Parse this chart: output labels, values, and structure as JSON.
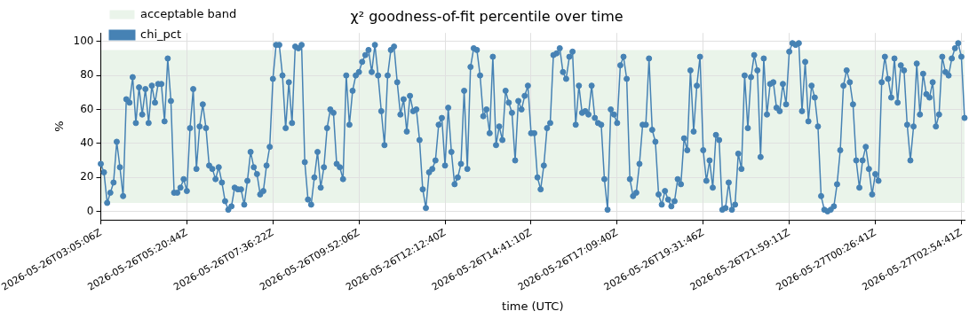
{
  "chart_data": {
    "type": "line",
    "title": "χ² goodness-of-fit percentile over time",
    "xlabel": "time (UTC)",
    "ylabel": "%",
    "categories": [
      "2026-05-26T03:05:06Z",
      null,
      null,
      null,
      null,
      null,
      null,
      null,
      null,
      null,
      null,
      null,
      null,
      null,
      null,
      null,
      null,
      null,
      null,
      null,
      null,
      null,
      null,
      null,
      null,
      null,
      null,
      "2026-05-26T05:20:44Z",
      null,
      null,
      null,
      null,
      null,
      null,
      null,
      null,
      null,
      null,
      null,
      null,
      null,
      null,
      null,
      null,
      null,
      null,
      null,
      null,
      null,
      null,
      null,
      null,
      null,
      null,
      "2026-05-26T07:36:22Z",
      null,
      null,
      null,
      null,
      null,
      null,
      null,
      null,
      null,
      null,
      null,
      null,
      null,
      null,
      null,
      null,
      null,
      null,
      null,
      null,
      null,
      null,
      null,
      null,
      null,
      null,
      "2026-05-26T09:52:06Z",
      null,
      null,
      null,
      null,
      null,
      null,
      null,
      null,
      null,
      null,
      null,
      null,
      null,
      null,
      null,
      null,
      null,
      null,
      null,
      null,
      null,
      null,
      null,
      null,
      null,
      null,
      "2026-05-26T12:12:40Z",
      null,
      null,
      null,
      null,
      null,
      null,
      null,
      null,
      null,
      null,
      null,
      null,
      null,
      null,
      null,
      null,
      null,
      null,
      null,
      null,
      null,
      null,
      null,
      null,
      null,
      null,
      "2026-05-26T14:41:10Z",
      null,
      null,
      null,
      null,
      null,
      null,
      null,
      null,
      null,
      null,
      null,
      null,
      null,
      null,
      null,
      null,
      null,
      null,
      null,
      null,
      null,
      null,
      null,
      null,
      null,
      null,
      "2026-05-26T17:09:40Z",
      null,
      null,
      null,
      null,
      null,
      null,
      null,
      null,
      null,
      null,
      null,
      null,
      null,
      null,
      null,
      null,
      null,
      null,
      null,
      null,
      null,
      null,
      null,
      null,
      null,
      null,
      "2026-05-26T19:31:46Z",
      null,
      null,
      null,
      null,
      null,
      null,
      null,
      null,
      null,
      null,
      null,
      null,
      null,
      null,
      null,
      null,
      null,
      null,
      null,
      null,
      null,
      null,
      null,
      null,
      null,
      null,
      "2026-05-26T21:59:11Z",
      null,
      null,
      null,
      null,
      null,
      null,
      null,
      null,
      null,
      null,
      null,
      null,
      null,
      null,
      null,
      null,
      null,
      null,
      null,
      null,
      null,
      null,
      null,
      null,
      null,
      null,
      "2026-05-27T00:26:41Z",
      null,
      null,
      null,
      null,
      null,
      null,
      null,
      null,
      null,
      null,
      null,
      null,
      null,
      null,
      null,
      null,
      null,
      null,
      null,
      null,
      null,
      null,
      null,
      null,
      null,
      null,
      "2026-05-27T02:54:41Z",
      null
    ],
    "series": [
      {
        "name": "chi_pct",
        "color": "#4682b4",
        "values": [
          28,
          23,
          5,
          11,
          17,
          41,
          26,
          9,
          66,
          64,
          79,
          52,
          73,
          57,
          72,
          52,
          74,
          64,
          75,
          75,
          53,
          90,
          65,
          11,
          11,
          14,
          19,
          12,
          49,
          72,
          25,
          50,
          63,
          49,
          27,
          25,
          19,
          26,
          17,
          6,
          1,
          3,
          14,
          13,
          13,
          4,
          18,
          35,
          26,
          22,
          10,
          12,
          27,
          38,
          78,
          98,
          98,
          80,
          49,
          76,
          52,
          97,
          96,
          98,
          29,
          7,
          4,
          20,
          35,
          14,
          26,
          49,
          60,
          58,
          28,
          26,
          19,
          80,
          51,
          71,
          80,
          82,
          88,
          92,
          95,
          82,
          98,
          80,
          59,
          39,
          80,
          95,
          97,
          76,
          57,
          66,
          47,
          68,
          59,
          60,
          42,
          13,
          2,
          23,
          25,
          30,
          51,
          55,
          27,
          61,
          35,
          16,
          20,
          28,
          71,
          25,
          85,
          96,
          95,
          80,
          56,
          60,
          46,
          91,
          39,
          50,
          42,
          71,
          64,
          58,
          30,
          65,
          60,
          68,
          74,
          46,
          46,
          20,
          13,
          27,
          49,
          52,
          92,
          93,
          96,
          82,
          78,
          91,
          94,
          51,
          74,
          58,
          59,
          57,
          74,
          55,
          52,
          51,
          19,
          1,
          60,
          57,
          52,
          86,
          91,
          78,
          19,
          9,
          11,
          28,
          51,
          51,
          90,
          48,
          41,
          10,
          4,
          12,
          7,
          3,
          6,
          19,
          16,
          43,
          36,
          83,
          47,
          74,
          91,
          36,
          18,
          30,
          14,
          45,
          42,
          1,
          2,
          17,
          1,
          4,
          34,
          25,
          80,
          49,
          79,
          92,
          83,
          32,
          90,
          57,
          75,
          76,
          61,
          59,
          75,
          63,
          94,
          99,
          98,
          99,
          59,
          88,
          53,
          74,
          67,
          50,
          9,
          1,
          0,
          1,
          3,
          16,
          36,
          74,
          83,
          76,
          63,
          30,
          14,
          30,
          38,
          25,
          10,
          22,
          18,
          76,
          91,
          78,
          67,
          90,
          64,
          86,
          83,
          51,
          30,
          50,
          87,
          57,
          81,
          69,
          67,
          76,
          50,
          57,
          91,
          82,
          80,
          90,
          96,
          99,
          91,
          55
        ]
      }
    ],
    "bands": [
      {
        "axis": "y",
        "from": 5,
        "to": 95,
        "label": "acceptable band",
        "color": "#eaf4ea"
      }
    ],
    "ylim": [
      -5,
      105
    ],
    "yticks": [
      0,
      20,
      40,
      60,
      80,
      100
    ],
    "grid": true,
    "legend": "top left",
    "marker": "circle",
    "line_style": "solid"
  }
}
